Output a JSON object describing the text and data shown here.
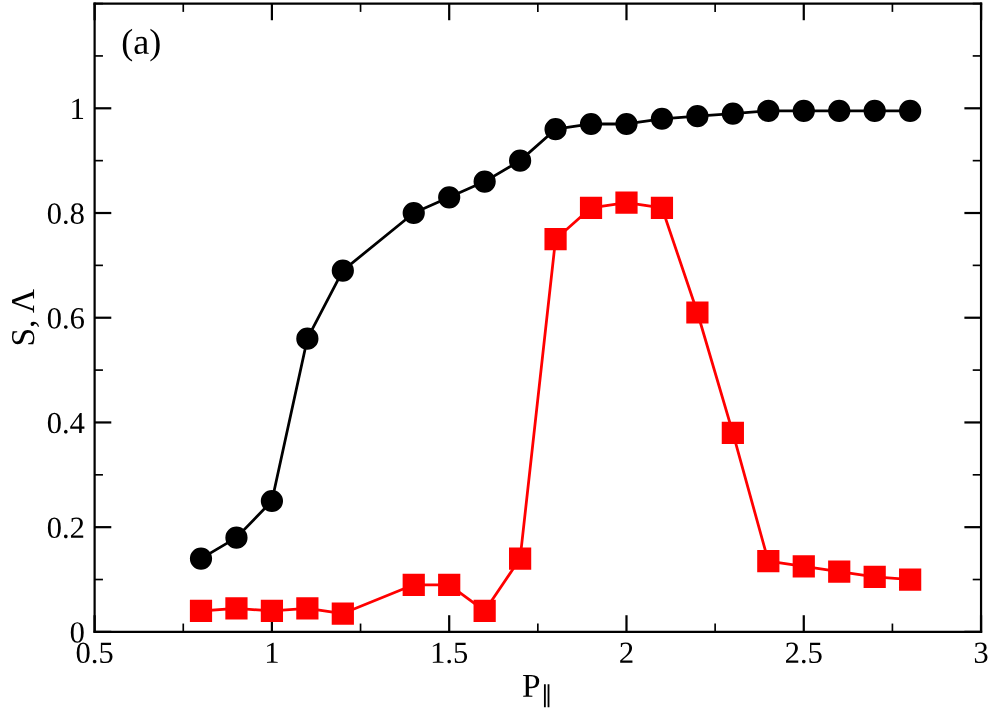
{
  "chart_data": {
    "type": "line",
    "xlabel": "P$_{∥}$",
    "ylabel": "S, Λ",
    "annotations": [
      "(a)"
    ],
    "x": [
      0.8,
      0.9,
      1.0,
      1.1,
      1.2,
      1.4,
      1.5,
      1.6,
      1.7,
      1.8,
      1.9,
      2.0,
      2.1,
      2.2,
      2.3,
      2.4,
      2.5,
      2.6,
      2.7,
      2.8
    ],
    "series": [
      {
        "color": "#000000",
        "marker": "circle",
        "values": [
          0.14,
          0.18,
          0.25,
          0.56,
          0.69,
          0.8,
          0.83,
          0.86,
          0.9,
          0.96,
          0.97,
          0.97,
          0.98,
          0.985,
          0.99,
          0.995,
          0.995,
          0.995,
          0.995,
          0.995
        ]
      },
      {
        "color": "#ff0000",
        "marker": "square",
        "values": [
          0.04,
          0.045,
          0.04,
          0.045,
          0.035,
          0.09,
          0.09,
          0.04,
          0.14,
          0.75,
          0.81,
          0.82,
          0.81,
          0.61,
          0.38,
          0.135,
          0.125,
          0.115,
          0.105,
          0.1
        ]
      }
    ],
    "xlim": [
      0.5,
      3
    ],
    "ylim": [
      0,
      1.2
    ],
    "xticks": [
      0.5,
      1,
      1.5,
      2,
      2.5,
      3
    ],
    "yticks": [
      0,
      0.2,
      0.4,
      0.6,
      0.8,
      1
    ],
    "grid": false,
    "legend": false,
    "line_style": "solid"
  }
}
